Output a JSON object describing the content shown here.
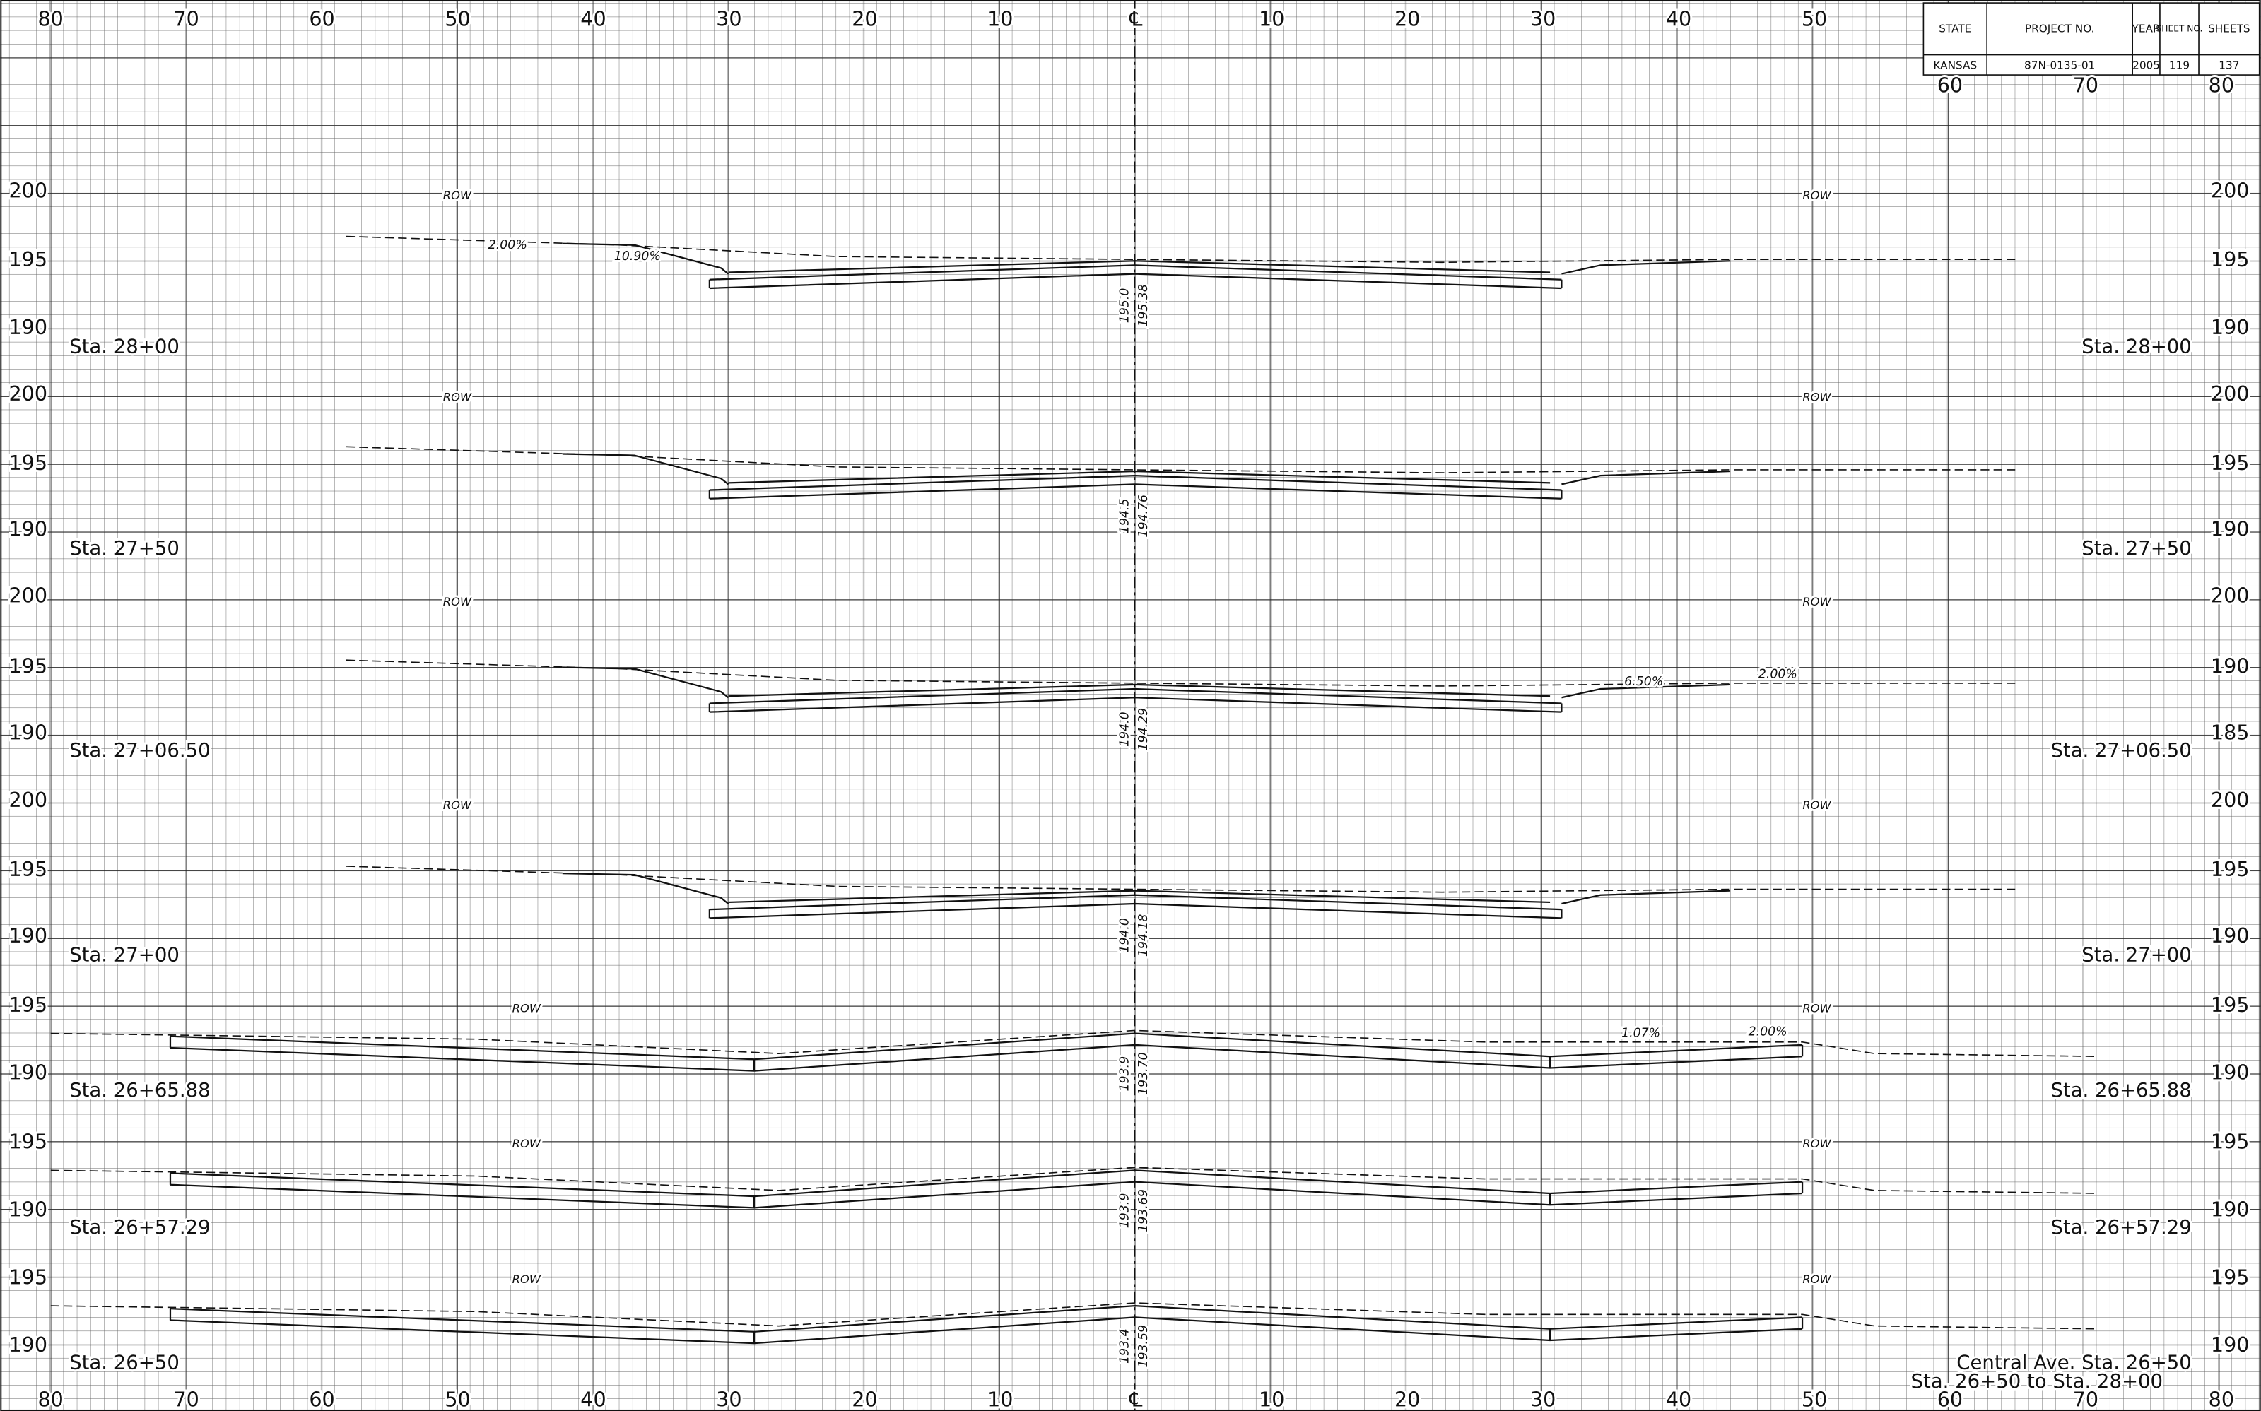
{
  "title_block": {
    "headers": [
      "STATE",
      "PROJECT NO.",
      "YEAR",
      "SHEET NO.",
      "SHEETS"
    ],
    "values": [
      "KANSAS",
      "87N-0135-01",
      "2005",
      "119",
      "137"
    ]
  },
  "top_scale": [
    "80",
    "70",
    "60",
    "50",
    "40",
    "30",
    "20",
    "10",
    "℄",
    "10",
    "20",
    "30",
    "40",
    "50",
    "60",
    "70",
    "80"
  ],
  "bottom_scale": [
    "80",
    "70",
    "60",
    "50",
    "40",
    "30",
    "20",
    "10",
    "℄",
    "10",
    "20",
    "30",
    "40",
    "50",
    "60",
    "70",
    "80"
  ],
  "sections": [
    {
      "station": "Sta. 28+00",
      "left_elevations": [
        "200",
        "195",
        "190"
      ],
      "right_elevations": [
        "200",
        "195",
        "190"
      ],
      "row_labels": [
        "ROW",
        "ROW"
      ],
      "centerline_labels": [
        "195.0",
        "195.38"
      ],
      "slope_labels": [
        "2.00%",
        "10.90%"
      ]
    },
    {
      "station": "Sta. 27+50",
      "left_elevations": [
        "200",
        "195",
        "190"
      ],
      "right_elevations": [
        "200",
        "195",
        "190"
      ],
      "row_labels": [
        "ROW",
        "ROW"
      ],
      "centerline_labels": [
        "194.5",
        "194.76"
      ],
      "slope_labels": []
    },
    {
      "station": "Sta. 27+06.50",
      "left_elevations": [
        "200",
        "195",
        "190"
      ],
      "right_elevations": [
        "200",
        "190",
        "185"
      ],
      "row_labels": [
        "ROW",
        "ROW"
      ],
      "centerline_labels": [
        "194.0",
        "194.29"
      ],
      "slope_labels": [
        "6.50%",
        "2.00%"
      ]
    },
    {
      "station": "Sta. 27+00",
      "left_elevations": [
        "200",
        "195",
        "190"
      ],
      "right_elevations": [
        "200",
        "195",
        "190"
      ],
      "row_labels": [
        "ROW",
        "ROW"
      ],
      "centerline_labels": [
        "194.0",
        "194.18"
      ],
      "slope_labels": []
    },
    {
      "station": "Sta. 26+65.88",
      "left_elevations": [
        "195",
        "190"
      ],
      "right_elevations": [
        "195",
        "190"
      ],
      "row_labels": [
        "ROW",
        "ROW"
      ],
      "centerline_labels": [
        "193.9",
        "193.70"
      ],
      "slope_labels": [
        "1.07%",
        "2.00%"
      ]
    },
    {
      "station": "Sta. 26+57.29",
      "left_elevations": [
        "195",
        "190"
      ],
      "right_elevations": [
        "195",
        "190"
      ],
      "row_labels": [
        "ROW",
        "ROW"
      ],
      "centerline_labels": [
        "193.9",
        "193.69"
      ],
      "slope_labels": []
    },
    {
      "station": "Sta. 26+50",
      "left_elevations": [
        "195",
        "190"
      ],
      "right_elevations": [
        "195",
        "190"
      ],
      "row_labels": [
        "ROW",
        "ROW"
      ],
      "centerline_labels": [
        "193.4",
        "193.59"
      ],
      "slope_labels": []
    }
  ],
  "footer": {
    "street": "Central Ave.   Sta. 26+50",
    "range": "Sta. 26+50 to Sta. 28+00"
  }
}
